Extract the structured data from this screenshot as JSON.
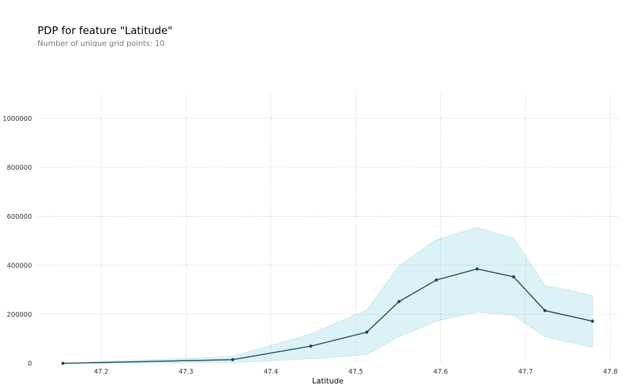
{
  "chart_data": {
    "type": "line",
    "title": "PDP for feature \"Latitude\"",
    "subtitle": "Number of unique grid points: 10",
    "xlabel": "Latitude",
    "ylabel": "",
    "xlim": [
      47.125,
      47.81
    ],
    "ylim": [
      0,
      1100000
    ],
    "x_ticks": [
      47.2,
      47.3,
      47.4,
      47.5,
      47.6,
      47.7,
      47.8
    ],
    "x_tick_labels": [
      "47.2",
      "47.3",
      "47.4",
      "47.5",
      "47.6",
      "47.7",
      "47.8"
    ],
    "y_ticks": [
      0,
      200000,
      400000,
      600000,
      800000,
      1000000
    ],
    "y_tick_labels": [
      "0",
      "200000",
      "400000",
      "600000",
      "800000",
      "1000000"
    ],
    "grid": true,
    "x": [
      47.155,
      47.355,
      47.447,
      47.513,
      47.551,
      47.595,
      47.643,
      47.686,
      47.723,
      47.779
    ],
    "series": [
      {
        "values": [
          0,
          15000,
          70000,
          127000,
          252000,
          340000,
          385000,
          353000,
          215000,
          172000
        ]
      }
    ],
    "band_upper": [
      0,
      28000,
      120000,
      218000,
      398000,
      505000,
      555000,
      510000,
      318000,
      278000
    ],
    "band_lower": [
      0,
      3000,
      18000,
      35000,
      108000,
      172000,
      210000,
      195000,
      108000,
      65000
    ],
    "colors": {
      "line": "#1a4a5a",
      "band": "#66c2d7",
      "grid": "#c8c8c8"
    }
  }
}
